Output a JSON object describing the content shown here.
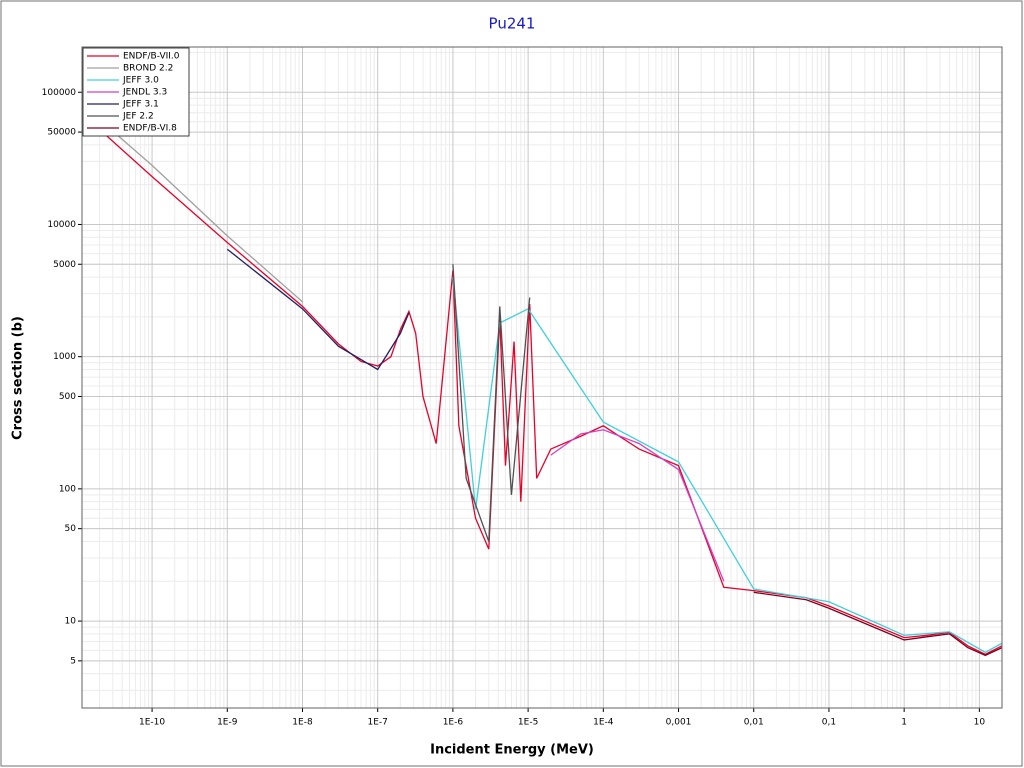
{
  "chart_data": {
    "type": "line",
    "title": "Pu241",
    "x_label": "Incident Energy (MeV)",
    "y_label": "Cross section (b)",
    "xscale": "log",
    "yscale": "log",
    "grid": true,
    "legend": "upper left",
    "xlim": [
      1.17e-11,
      20
    ],
    "ylim": [
      2.2,
      220000
    ],
    "xticks": [
      {
        "value": 1e-10,
        "label": "1E-10"
      },
      {
        "value": 1e-09,
        "label": "1E-9"
      },
      {
        "value": 1e-08,
        "label": "1E-8"
      },
      {
        "value": 1e-07,
        "label": "1E-7"
      },
      {
        "value": 1e-06,
        "label": "1E-6"
      },
      {
        "value": 1e-05,
        "label": "1E-5"
      },
      {
        "value": 0.0001,
        "label": "1E-4"
      },
      {
        "value": 0.001,
        "label": "0,001"
      },
      {
        "value": 0.01,
        "label": "0,01"
      },
      {
        "value": 0.1,
        "label": "0,1"
      },
      1,
      10
    ],
    "yticks": [
      5,
      10,
      50,
      100,
      500,
      1000,
      5000,
      10000,
      50000,
      100000
    ],
    "series": [
      {
        "name": "ENDF/B-VII.0",
        "color": "#e8002a",
        "x": [
          1.2e-11,
          1e-10,
          1e-09,
          1e-08,
          3e-08,
          6e-08,
          1e-07,
          1.5e-07,
          2e-07,
          2.6e-07,
          3.2e-07,
          4e-07,
          6e-07,
          1e-06,
          1.2e-06,
          2e-06,
          3e-06,
          4.2e-06,
          5e-06,
          6.5e-06,
          8e-06,
          1.05e-05,
          1.3e-05,
          2e-05,
          5e-05,
          0.0001,
          0.0003,
          0.001,
          0.004,
          0.01,
          0.05,
          0.1,
          0.3,
          1,
          2,
          4,
          7,
          12,
          20
        ],
        "values": [
          68000,
          23000,
          7300,
          2400,
          1250,
          920,
          850,
          1000,
          1600,
          2200,
          1500,
          500,
          220,
          4500,
          300,
          60,
          35,
          2000,
          150,
          1300,
          80,
          2500,
          120,
          200,
          250,
          300,
          200,
          150,
          18,
          17,
          15,
          13,
          10,
          7.5,
          7.8,
          8.2,
          6.5,
          5.6,
          6.5
        ]
      },
      {
        "name": "BROND 2.2",
        "color": "#a0a0a0",
        "x": [
          1.2e-11,
          1e-10,
          1e-09,
          1e-08
        ],
        "values": [
          80000,
          28000,
          8200,
          2600
        ]
      },
      {
        "name": "JEFF 3.0",
        "color": "#40d0d8",
        "x": [
          1e-06,
          2e-06,
          4.2e-06,
          1e-05,
          0.0001,
          0.001,
          0.01,
          0.1,
          1,
          4,
          12,
          20
        ],
        "values": [
          4000,
          70,
          1800,
          2300,
          320,
          160,
          17.5,
          14,
          7.8,
          8.3,
          5.8,
          6.8
        ]
      },
      {
        "name": "JENDL 3.3",
        "color": "#d040c8",
        "x": [
          2e-05,
          5e-05,
          0.0001,
          0.0003,
          0.001,
          0.004
        ],
        "values": [
          180,
          260,
          280,
          220,
          140,
          20
        ]
      },
      {
        "name": "JEFF 3.1",
        "color": "#202060",
        "x": [
          1e-09,
          1e-08,
          3e-08,
          1e-07,
          2e-07,
          2.6e-07
        ],
        "values": [
          6500,
          2300,
          1200,
          800,
          1500,
          2150
        ]
      },
      {
        "name": "JEF 2.2",
        "color": "#505050",
        "x": [
          1e-06,
          1.5e-06,
          3e-06,
          4.2e-06,
          6e-06,
          1.05e-05
        ],
        "values": [
          5000,
          120,
          40,
          2400,
          90,
          2800
        ]
      },
      {
        "name": "ENDF/B-VI.8",
        "color": "#800020",
        "x": [
          0.01,
          0.05,
          0.1,
          0.3,
          1,
          2,
          4,
          7,
          12,
          20
        ],
        "values": [
          16.5,
          14.5,
          12.5,
          9.6,
          7.2,
          7.6,
          8.0,
          6.3,
          5.5,
          6.3
        ]
      }
    ]
  }
}
